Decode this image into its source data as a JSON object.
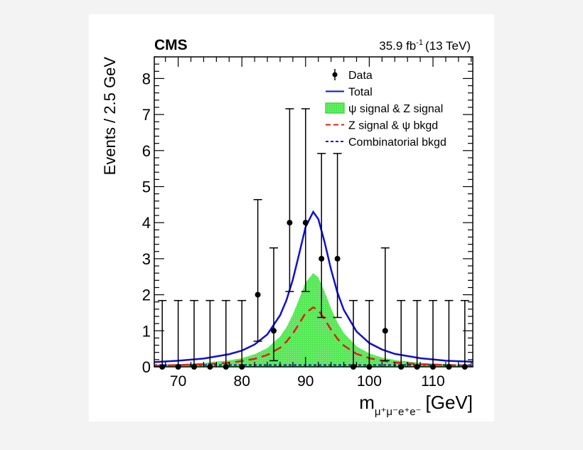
{
  "header": {
    "experiment": "CMS",
    "lumi": "35.9 fb",
    "lumi_sup": "-1",
    "energy": "(13 TeV)"
  },
  "chart_data": {
    "type": "scatter",
    "xlabel_main": "m",
    "xlabel_sub": "μ⁺μ⁻e⁺e⁻",
    "xlabel_unit": "[GeV]",
    "ylabel": "Events / 2.5 GeV",
    "xlim": [
      66.25,
      116.25
    ],
    "ylim": [
      0,
      8.6
    ],
    "xticks": [
      70,
      80,
      90,
      100,
      110
    ],
    "yticks": [
      0,
      1,
      2,
      3,
      4,
      5,
      6,
      7,
      8
    ],
    "legend_position": "top-right",
    "legend": [
      {
        "label": "Data",
        "style": "marker"
      },
      {
        "label": "Total",
        "style": "line",
        "color": "#1010d0"
      },
      {
        "label": "ψ signal & Z signal",
        "style": "fill",
        "color": "#3ee03e"
      },
      {
        "label": "Z signal & ψ bkgd",
        "style": "dashed",
        "color": "#e02010"
      },
      {
        "label": "Combinatorial bkgd",
        "style": "dotted",
        "color": "#1010d0"
      }
    ],
    "data": {
      "name": "Data",
      "x": [
        67.5,
        70,
        72.5,
        75,
        77.5,
        80,
        82.5,
        85,
        87.5,
        90,
        92.5,
        95,
        97.5,
        100,
        102.5,
        105,
        107.5,
        110,
        112.5,
        115
      ],
      "y": [
        0,
        0,
        0,
        0,
        0,
        0,
        2,
        1,
        4,
        4,
        3,
        3,
        0,
        0,
        1,
        0,
        0,
        0,
        0,
        0
      ],
      "err_low": [
        0,
        0,
        0,
        0,
        0,
        0,
        1.29,
        0.83,
        1.91,
        1.91,
        1.63,
        1.63,
        0,
        0,
        0.83,
        0,
        0,
        0,
        0,
        0
      ],
      "err_high": [
        1.84,
        1.84,
        1.84,
        1.84,
        1.84,
        1.84,
        2.64,
        2.3,
        3.16,
        3.16,
        2.92,
        2.92,
        1.84,
        1.84,
        2.3,
        1.84,
        1.84,
        1.84,
        1.84,
        1.84
      ]
    },
    "curve_x": [
      66.25,
      70,
      74,
      78,
      80,
      82,
      84,
      86,
      87,
      88,
      89,
      90,
      91.2,
      92,
      93,
      94,
      95,
      96,
      98,
      100,
      102,
      104,
      108,
      112,
      116.25
    ],
    "series": [
      {
        "name": "Total",
        "color": "#1010d0",
        "values": [
          0.13,
          0.17,
          0.23,
          0.35,
          0.45,
          0.62,
          0.9,
          1.43,
          1.85,
          2.42,
          3.14,
          3.88,
          4.3,
          4.1,
          3.45,
          2.7,
          2.06,
          1.58,
          0.98,
          0.66,
          0.48,
          0.36,
          0.24,
          0.17,
          0.14
        ]
      },
      {
        "name": "ψ signal & Z signal",
        "color": "#3ee03e",
        "values": [
          0.05,
          0.07,
          0.11,
          0.18,
          0.24,
          0.35,
          0.52,
          0.84,
          1.1,
          1.45,
          1.89,
          2.34,
          2.6,
          2.48,
          2.08,
          1.62,
          1.23,
          0.94,
          0.57,
          0.37,
          0.26,
          0.19,
          0.11,
          0.08,
          0.05
        ]
      },
      {
        "name": "Z signal & ψ bkgd",
        "color": "#e02010",
        "values": [
          0.03,
          0.05,
          0.07,
          0.11,
          0.16,
          0.22,
          0.33,
          0.53,
          0.7,
          0.92,
          1.2,
          1.49,
          1.65,
          1.57,
          1.32,
          1.03,
          0.78,
          0.59,
          0.36,
          0.24,
          0.17,
          0.12,
          0.07,
          0.05,
          0.03
        ]
      },
      {
        "name": "Combinatorial bkgd",
        "color": "#1010d0",
        "values": [
          0.05,
          0.05,
          0.05,
          0.05,
          0.05,
          0.05,
          0.05,
          0.05,
          0.05,
          0.05,
          0.05,
          0.05,
          0.05,
          0.05,
          0.05,
          0.05,
          0.05,
          0.05,
          0.05,
          0.05,
          0.05,
          0.05,
          0.05,
          0.05,
          0.05
        ]
      }
    ]
  }
}
